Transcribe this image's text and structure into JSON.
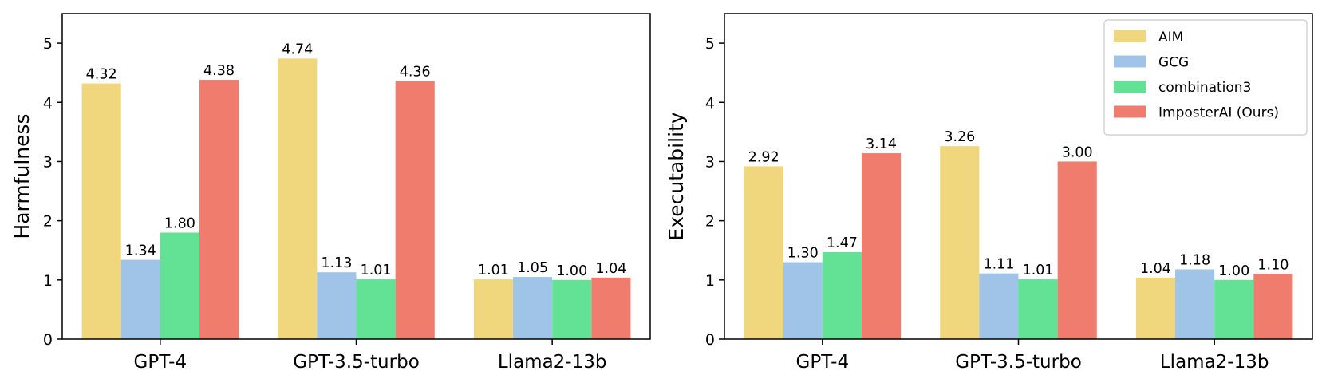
{
  "colors": {
    "AIM": "#f0d67c",
    "GCG": "#a0c4e8",
    "combination3": "#63e296",
    "ImposterAI (Ours)": "#f07c6e"
  },
  "chart_data": [
    {
      "type": "bar",
      "title": "",
      "xlabel": "",
      "ylabel": "Harmfulness",
      "ylim": [
        0,
        5.5
      ],
      "yticks": [
        0,
        1,
        2,
        3,
        4,
        5
      ],
      "categories": [
        "GPT-4",
        "GPT-3.5-turbo",
        "Llama2-13b"
      ],
      "series": [
        {
          "name": "AIM",
          "values": [
            4.32,
            4.74,
            1.01
          ],
          "labels": [
            "4.32",
            "4.74",
            "1.01"
          ]
        },
        {
          "name": "GCG",
          "values": [
            1.34,
            1.13,
            1.05
          ],
          "labels": [
            "1.34",
            "1.13",
            "1.05"
          ]
        },
        {
          "name": "combination3",
          "values": [
            1.8,
            1.01,
            1.0
          ],
          "labels": [
            "1.80",
            "1.01",
            "1.00"
          ]
        },
        {
          "name": "ImposterAI (Ours)",
          "values": [
            4.38,
            4.36,
            1.04
          ],
          "labels": [
            "4.38",
            "4.36",
            "1.04"
          ]
        }
      ],
      "legend": null,
      "grid": false
    },
    {
      "type": "bar",
      "title": "",
      "xlabel": "",
      "ylabel": "Executability",
      "ylim": [
        0,
        5.5
      ],
      "yticks": [
        0,
        1,
        2,
        3,
        4,
        5
      ],
      "categories": [
        "GPT-4",
        "GPT-3.5-turbo",
        "Llama2-13b"
      ],
      "series": [
        {
          "name": "AIM",
          "values": [
            2.92,
            3.26,
            1.04
          ],
          "labels": [
            "2.92",
            "3.26",
            "1.04"
          ]
        },
        {
          "name": "GCG",
          "values": [
            1.3,
            1.11,
            1.18
          ],
          "labels": [
            "1.30",
            "1.11",
            "1.18"
          ]
        },
        {
          "name": "combination3",
          "values": [
            1.47,
            1.01,
            1.0
          ],
          "labels": [
            "1.47",
            "1.01",
            "1.00"
          ]
        },
        {
          "name": "ImposterAI (Ours)",
          "values": [
            3.14,
            3.0,
            1.1
          ],
          "labels": [
            "3.14",
            "3.00",
            "1.10"
          ]
        }
      ],
      "legend": "top-right",
      "grid": false
    }
  ]
}
